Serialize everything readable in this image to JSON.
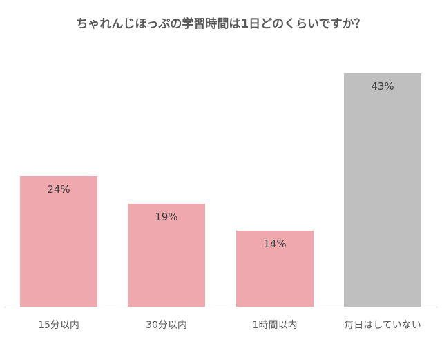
{
  "chart_data": {
    "type": "bar",
    "title": "ちゃれんじほっぷの学習時間は1日どのくらいですか？",
    "categories": [
      "15分以内",
      "30分以内",
      "1時間以内",
      "毎日はしていない"
    ],
    "values": [
      24,
      19,
      14,
      43
    ],
    "value_labels": [
      "24%",
      "19%",
      "14%",
      "43%"
    ],
    "colors": [
      "#eea8ae",
      "#eea8ae",
      "#eea8ae",
      "#bfbfbf"
    ],
    "xlabel": "",
    "ylabel": "",
    "ylim": [
      0,
      43
    ],
    "grid": false,
    "legend": null,
    "unit": "%"
  }
}
